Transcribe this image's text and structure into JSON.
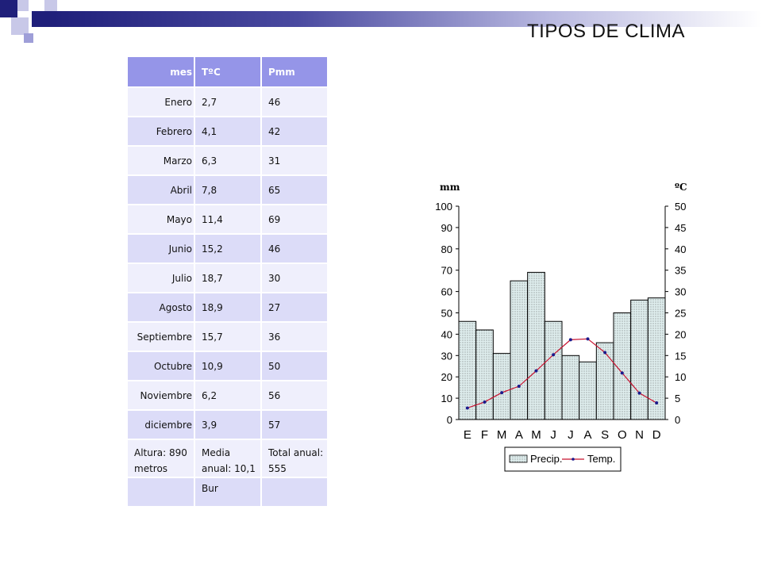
{
  "title": "TIPOS DE CLIMA",
  "table": {
    "headers": [
      "mes",
      "TºC",
      "Pmm"
    ],
    "rows": [
      [
        "Enero",
        "2,7",
        "46"
      ],
      [
        "Febrero",
        "4,1",
        "42"
      ],
      [
        "Marzo",
        "6,3",
        "31"
      ],
      [
        "Abril",
        "7,8",
        "65"
      ],
      [
        "Mayo",
        "11,4",
        "69"
      ],
      [
        "Junio",
        "15,2",
        "46"
      ],
      [
        "Julio",
        "18,7",
        "30"
      ],
      [
        "Agosto",
        "18,9",
        "27"
      ],
      [
        "Septiembre",
        "15,7",
        "36"
      ],
      [
        "Octubre",
        "10,9",
        "50"
      ],
      [
        "Noviembre",
        "6,2",
        "56"
      ],
      [
        "diciembre",
        "3,9",
        "57"
      ]
    ],
    "footer": {
      "altura": "Altura: 890 metros",
      "media": "Media anual: 10,1",
      "total": "Total anual: 555",
      "clasificacion": "Bur"
    }
  },
  "chart_data": {
    "type": "bar",
    "categories": [
      "E",
      "F",
      "M",
      "A",
      "M",
      "J",
      "J",
      "A",
      "S",
      "O",
      "N",
      "D"
    ],
    "series": [
      {
        "name": "Precip.",
        "type": "bar",
        "axis": "left",
        "values": [
          46,
          42,
          31,
          65,
          69,
          46,
          30,
          27,
          36,
          50,
          56,
          57
        ]
      },
      {
        "name": "Temp.",
        "type": "line",
        "axis": "right",
        "values": [
          2.7,
          4.1,
          6.3,
          7.8,
          11.4,
          15.2,
          18.7,
          18.9,
          15.7,
          10.9,
          6.2,
          3.9
        ]
      }
    ],
    "ylabel_left": "mm",
    "ylabel_right": "ºC",
    "ylim_left": [
      0,
      100
    ],
    "ylim_right": [
      0,
      50
    ],
    "yticks_left": [
      "0",
      "10",
      "20",
      "30",
      "40",
      "50",
      "60",
      "70",
      "80",
      "90",
      "100"
    ],
    "yticks_right": [
      "0",
      "5",
      "10",
      "15",
      "20",
      "25",
      "30",
      "35",
      "40",
      "45",
      "50"
    ],
    "legend": "bottom",
    "colors": {
      "bar_fill": "#dfeeee",
      "line": "#c8102e",
      "marker": "#1a1a8c"
    }
  }
}
